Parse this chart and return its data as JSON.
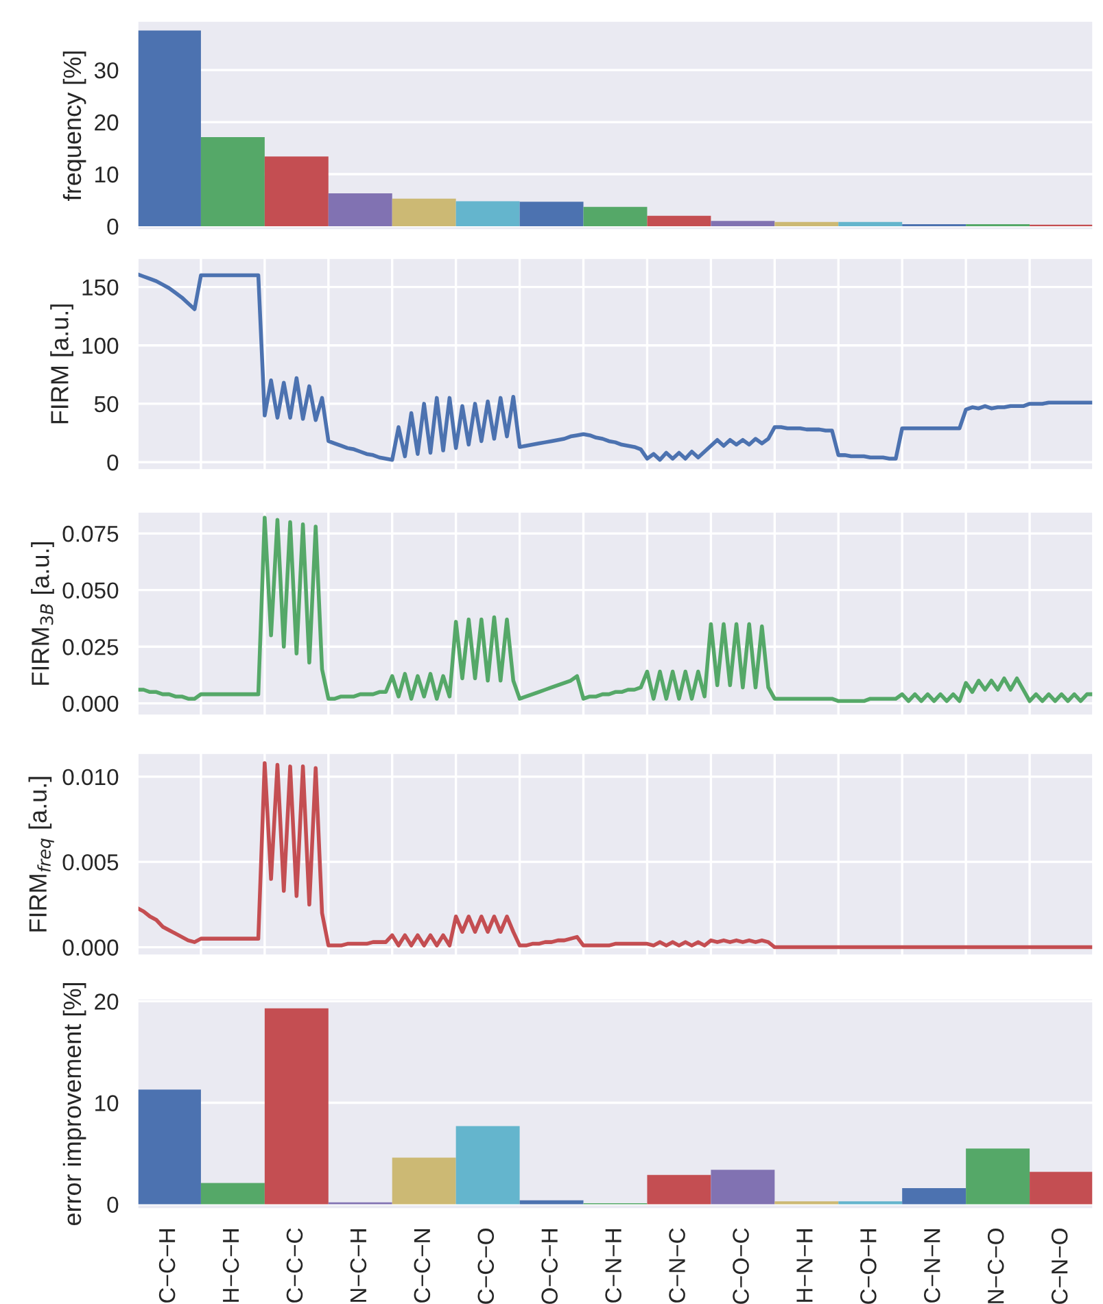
{
  "chart_data": [
    {
      "type": "bar",
      "ylabel": "frequency [%]",
      "categories": [
        null,
        null,
        null,
        null,
        null,
        null,
        null,
        null,
        null,
        null,
        null,
        null,
        null,
        null,
        null
      ],
      "values": [
        37.6,
        17.1,
        13.4,
        6.3,
        5.3,
        4.8,
        4.7,
        3.7,
        2.0,
        1.0,
        0.8,
        0.8,
        0.4,
        0.4,
        0.3
      ],
      "colors": [
        "#4c72b0",
        "#55a868",
        "#c44e52",
        "#8172b2",
        "#ccb974",
        "#64b5cd",
        "#4c72b0",
        "#55a868",
        "#c44e52",
        "#8172b2",
        "#ccb974",
        "#64b5cd",
        "#4c72b0",
        "#55a868",
        "#c44e52"
      ],
      "ylim": [
        -0.8,
        39.5
      ],
      "yticks": [
        0,
        10,
        20,
        30
      ],
      "grid": "y",
      "tick_labels": "y"
    },
    {
      "type": "line",
      "ylabel": "FIRM [a.u.]",
      "categories": [
        null,
        null,
        null,
        null,
        null,
        null,
        null,
        null,
        null,
        null,
        null,
        null,
        null,
        null,
        null,
        null,
        null,
        null,
        null,
        null,
        null,
        null,
        null,
        null,
        null,
        null,
        null,
        null,
        null,
        null,
        null,
        null,
        null,
        null,
        null,
        null,
        null,
        null,
        null,
        null,
        null,
        null,
        null,
        null,
        null,
        null,
        null,
        null,
        null,
        null,
        null,
        null,
        null,
        null,
        null,
        null,
        null,
        null,
        null,
        null,
        null,
        null,
        null,
        null,
        null,
        null,
        null,
        null,
        null,
        null,
        null,
        null,
        null,
        null,
        null,
        null,
        null,
        null,
        null,
        null,
        null,
        null,
        null,
        null,
        null,
        null,
        null,
        null,
        null,
        null,
        null,
        null,
        null,
        null,
        null,
        null,
        null,
        null,
        null,
        null,
        null,
        null,
        null,
        null,
        null,
        null,
        null,
        null,
        null,
        null,
        null,
        null,
        null,
        null,
        null,
        null,
        null,
        null,
        null,
        null,
        null,
        null,
        null,
        null,
        null,
        null,
        null,
        null,
        null,
        null,
        null,
        null,
        null,
        null,
        null,
        null,
        null,
        null,
        null,
        null,
        null,
        null,
        null,
        null,
        null,
        null,
        null,
        null,
        null,
        null,
        null
      ],
      "ylim": [
        -7,
        175
      ],
      "yticks": [
        0,
        50,
        100,
        150
      ],
      "grid": true,
      "tick_labels": "y",
      "series": [
        {
          "color": "#4c72b0",
          "values": [
            161,
            159,
            157,
            155,
            152,
            149,
            145,
            141,
            136,
            131,
            160,
            160,
            160,
            160,
            160,
            160,
            160,
            160,
            160,
            160,
            40,
            70,
            38,
            68,
            38,
            72,
            37,
            65,
            36,
            55,
            18,
            16,
            14,
            12,
            11,
            9,
            7,
            6,
            4,
            3,
            2,
            30,
            5,
            42,
            7,
            50,
            8,
            55,
            10,
            55,
            12,
            48,
            15,
            50,
            18,
            52,
            20,
            55,
            22,
            56,
            13,
            14,
            15,
            16,
            17,
            18,
            19,
            20,
            22,
            23,
            24,
            23,
            21,
            20,
            18,
            17,
            15,
            14,
            13,
            11,
            3,
            7,
            2,
            8,
            3,
            8,
            3,
            9,
            4,
            9,
            14,
            19,
            14,
            19,
            15,
            19,
            15,
            20,
            16,
            20,
            30,
            30,
            29,
            29,
            29,
            28,
            28,
            28,
            27,
            27,
            6,
            6,
            5,
            5,
            5,
            4,
            4,
            4,
            3,
            3,
            29,
            29,
            29,
            29,
            29,
            29,
            29,
            29,
            29,
            29,
            45,
            47,
            46,
            48,
            46,
            47,
            47,
            48,
            48,
            48,
            50,
            50,
            50,
            51,
            51,
            51,
            51,
            51,
            51,
            51,
            51
          ]
        }
      ]
    },
    {
      "type": "line",
      "ylabel": "FIRM$_{3B}$ [a.u.]",
      "categories": [
        null,
        null,
        null,
        null,
        null,
        null,
        null,
        null,
        null,
        null,
        null,
        null,
        null,
        null,
        null,
        null,
        null,
        null,
        null,
        null,
        null,
        null,
        null,
        null,
        null,
        null,
        null,
        null,
        null,
        null,
        null,
        null,
        null,
        null,
        null,
        null,
        null,
        null,
        null,
        null,
        null,
        null,
        null,
        null,
        null,
        null,
        null,
        null,
        null,
        null,
        null,
        null,
        null,
        null,
        null,
        null,
        null,
        null,
        null,
        null,
        null,
        null,
        null,
        null,
        null,
        null,
        null,
        null,
        null,
        null,
        null,
        null,
        null,
        null,
        null,
        null,
        null,
        null,
        null,
        null,
        null,
        null,
        null,
        null,
        null,
        null,
        null,
        null,
        null,
        null,
        null,
        null,
        null,
        null,
        null,
        null,
        null,
        null,
        null,
        null,
        null,
        null,
        null,
        null,
        null,
        null,
        null,
        null,
        null,
        null,
        null,
        null,
        null,
        null,
        null,
        null,
        null,
        null,
        null,
        null,
        null,
        null,
        null,
        null,
        null,
        null,
        null,
        null,
        null,
        null,
        null,
        null,
        null,
        null,
        null,
        null,
        null,
        null,
        null,
        null,
        null,
        null,
        null,
        null,
        null,
        null,
        null,
        null,
        null,
        null,
        null
      ],
      "ylim": [
        -0.0055,
        0.0847
      ],
      "yticks": [
        {
          "value": 0,
          "label": "0.000"
        },
        {
          "value": 0.025,
          "label": "0.025"
        },
        {
          "value": 0.05,
          "label": "0.050"
        },
        {
          "value": 0.075,
          "label": "0.075"
        }
      ],
      "grid": true,
      "tick_labels": "y",
      "series": [
        {
          "color": "#55a868",
          "values": [
            0.006,
            0.006,
            0.005,
            0.005,
            0.004,
            0.004,
            0.003,
            0.003,
            0.002,
            0.002,
            0.004,
            0.004,
            0.004,
            0.004,
            0.004,
            0.004,
            0.004,
            0.004,
            0.004,
            0.004,
            0.082,
            0.03,
            0.081,
            0.025,
            0.08,
            0.022,
            0.079,
            0.018,
            0.078,
            0.015,
            0.002,
            0.002,
            0.003,
            0.003,
            0.003,
            0.004,
            0.004,
            0.004,
            0.005,
            0.005,
            0.012,
            0.003,
            0.013,
            0.002,
            0.012,
            0.003,
            0.013,
            0.002,
            0.012,
            0.003,
            0.036,
            0.011,
            0.037,
            0.011,
            0.037,
            0.01,
            0.038,
            0.01,
            0.037,
            0.01,
            0.002,
            0.003,
            0.004,
            0.005,
            0.006,
            0.007,
            0.008,
            0.009,
            0.01,
            0.012,
            0.002,
            0.003,
            0.003,
            0.004,
            0.004,
            0.005,
            0.005,
            0.006,
            0.006,
            0.007,
            0.014,
            0.002,
            0.014,
            0.002,
            0.014,
            0.002,
            0.014,
            0.002,
            0.014,
            0.003,
            0.035,
            0.008,
            0.035,
            0.008,
            0.035,
            0.007,
            0.035,
            0.007,
            0.034,
            0.007,
            0.002,
            0.002,
            0.002,
            0.002,
            0.002,
            0.002,
            0.002,
            0.002,
            0.002,
            0.002,
            0.001,
            0.001,
            0.001,
            0.001,
            0.001,
            0.002,
            0.002,
            0.002,
            0.002,
            0.002,
            0.004,
            0.001,
            0.004,
            0.001,
            0.004,
            0.001,
            0.004,
            0.001,
            0.004,
            0.001,
            0.009,
            0.005,
            0.01,
            0.006,
            0.01,
            0.006,
            0.011,
            0.006,
            0.011,
            0.006,
            0.001,
            0.004,
            0.001,
            0.004,
            0.001,
            0.004,
            0.001,
            0.004,
            0.001,
            0.004,
            0.004
          ]
        }
      ]
    },
    {
      "type": "line",
      "ylabel": "FIRM$_{freq}$ [a.u.]",
      "categories": [
        null,
        null,
        null,
        null,
        null,
        null,
        null,
        null,
        null,
        null,
        null,
        null,
        null,
        null,
        null,
        null,
        null,
        null,
        null,
        null,
        null,
        null,
        null,
        null,
        null,
        null,
        null,
        null,
        null,
        null,
        null,
        null,
        null,
        null,
        null,
        null,
        null,
        null,
        null,
        null,
        null,
        null,
        null,
        null,
        null,
        null,
        null,
        null,
        null,
        null,
        null,
        null,
        null,
        null,
        null,
        null,
        null,
        null,
        null,
        null,
        null,
        null,
        null,
        null,
        null,
        null,
        null,
        null,
        null,
        null,
        null,
        null,
        null,
        null,
        null,
        null,
        null,
        null,
        null,
        null,
        null,
        null,
        null,
        null,
        null,
        null,
        null,
        null,
        null,
        null,
        null,
        null,
        null,
        null,
        null,
        null,
        null,
        null,
        null,
        null,
        null,
        null,
        null,
        null,
        null,
        null,
        null,
        null,
        null,
        null,
        null,
        null,
        null,
        null,
        null,
        null,
        null,
        null,
        null,
        null,
        null,
        null,
        null,
        null,
        null,
        null,
        null,
        null,
        null,
        null,
        null,
        null,
        null,
        null,
        null,
        null,
        null,
        null,
        null,
        null,
        null,
        null,
        null,
        null,
        null,
        null,
        null,
        null,
        null,
        null,
        null
      ],
      "ylim": [
        -0.0005,
        0.0114
      ],
      "yticks": [
        {
          "value": 0,
          "label": "0.000"
        },
        {
          "value": 0.005,
          "label": "0.005"
        },
        {
          "value": 0.01,
          "label": "0.010"
        }
      ],
      "grid": true,
      "tick_labels": "y",
      "series": [
        {
          "color": "#c44e52",
          "values": [
            0.0023,
            0.0021,
            0.0018,
            0.0016,
            0.0012,
            0.001,
            0.0008,
            0.0006,
            0.0004,
            0.0003,
            0.0005,
            0.0005,
            0.0005,
            0.0005,
            0.0005,
            0.0005,
            0.0005,
            0.0005,
            0.0005,
            0.0005,
            0.0108,
            0.004,
            0.0107,
            0.0033,
            0.0106,
            0.003,
            0.0106,
            0.0025,
            0.0105,
            0.002,
            0.0001,
            0.0001,
            0.0001,
            0.0002,
            0.0002,
            0.0002,
            0.0002,
            0.0003,
            0.0003,
            0.0003,
            0.0007,
            0.0001,
            0.0007,
            0.0001,
            0.0007,
            0.0001,
            0.0007,
            0.0001,
            0.0007,
            0.0001,
            0.0018,
            0.0009,
            0.0018,
            0.0009,
            0.0018,
            0.0009,
            0.0018,
            0.0009,
            0.0018,
            0.0009,
            0.0001,
            0.0001,
            0.0002,
            0.0002,
            0.0003,
            0.0003,
            0.0004,
            0.0004,
            0.0005,
            0.0006,
            0.0001,
            0.0001,
            0.0001,
            0.0001,
            0.0001,
            0.0002,
            0.0002,
            0.0002,
            0.0002,
            0.0002,
            0.0002,
            0.0001,
            0.0003,
            0.0001,
            0.0003,
            0.0001,
            0.0003,
            0.0001,
            0.0003,
            0.0001,
            0.0004,
            0.0003,
            0.0004,
            0.0003,
            0.0004,
            0.0003,
            0.0004,
            0.0003,
            0.0004,
            0.0003,
            0,
            0,
            0,
            0,
            0,
            0,
            0,
            0,
            0,
            0,
            0,
            0,
            0,
            0,
            0,
            0,
            0,
            0,
            0,
            0,
            0,
            0,
            0,
            0,
            0,
            0,
            0,
            0,
            0,
            0,
            0,
            0,
            0,
            0,
            0,
            0,
            0,
            0,
            0,
            0,
            0,
            0,
            0,
            0,
            0,
            0,
            0,
            0,
            0,
            0,
            0
          ]
        }
      ]
    },
    {
      "type": "bar",
      "ylabel": "error improvement [%]",
      "categories": [
        "C−C−H",
        "H−C−H",
        "C−C−C",
        "N−C−H",
        "C−C−N",
        "C−C−O",
        "O−C−H",
        "C−N−H",
        "C−N−C",
        "C−O−C",
        "H−N−H",
        "C−O−H",
        "C−N−N",
        "N−C−O",
        "C−N−O"
      ],
      "values": [
        11.3,
        2.1,
        19.3,
        0.2,
        4.6,
        7.7,
        0.4,
        0.1,
        2.9,
        3.4,
        0.3,
        0.3,
        1.6,
        5.5,
        3.2
      ],
      "colors": [
        "#4c72b0",
        "#55a868",
        "#c44e52",
        "#8172b2",
        "#ccb974",
        "#64b5cd",
        "#4c72b0",
        "#55a868",
        "#c44e52",
        "#8172b2",
        "#ccb974",
        "#64b5cd",
        "#4c72b0",
        "#55a868",
        "#c44e52"
      ],
      "ylim": [
        -0.5,
        20.3
      ],
      "yticks": [
        0,
        10,
        20
      ],
      "grid": "y"
    }
  ]
}
